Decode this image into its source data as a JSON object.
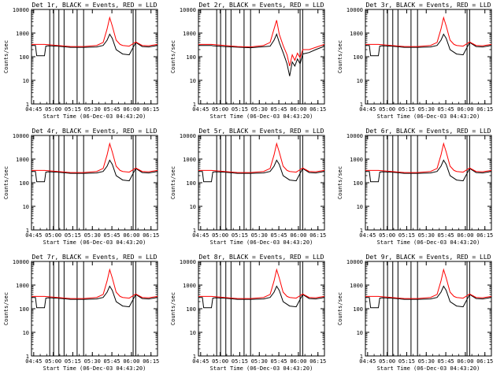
{
  "figure": {
    "panels": [
      {
        "title": "Det 1r, BLACK = Events, RED = LLD",
        "profile": "normal"
      },
      {
        "title": "Det 2r, BLACK = Events, RED = LLD",
        "profile": "det2"
      },
      {
        "title": "Det 3r, BLACK = Events, RED = LLD",
        "profile": "normal"
      },
      {
        "title": "Det 4r, BLACK = Events, RED = LLD",
        "profile": "normal"
      },
      {
        "title": "Det 5r, BLACK = Events, RED = LLD",
        "profile": "normal"
      },
      {
        "title": "Det 6r, BLACK = Events, RED = LLD",
        "profile": "normal"
      },
      {
        "title": "Det 7r, BLACK = Events, RED = LLD",
        "profile": "normal"
      },
      {
        "title": "Det 8r, BLACK = Events, RED = LLD",
        "profile": "normal"
      },
      {
        "title": "Det 9r, BLACK = Events, RED = LLD",
        "profile": "normal"
      }
    ],
    "colors": {
      "events": "#000000",
      "lld": "#ff0000",
      "axes": "#000000"
    }
  },
  "chart_data": {
    "type": "line",
    "ylabel": "Counts/sec",
    "xlabel": "Start Time (06-Dec-03 04:43:20)",
    "y_scale": "log",
    "ylim": [
      1,
      10000
    ],
    "yticks": [
      1,
      10,
      100,
      1000,
      10000
    ],
    "ytick_labels": [
      "1",
      "10",
      "100",
      "1000",
      "10000"
    ],
    "x_minutes_range": [
      0,
      96.7
    ],
    "xtick_labels": [
      "04:45",
      "05:00",
      "05:15",
      "05:30",
      "05:45",
      "06:00",
      "06:15"
    ],
    "xtick_minutes": [
      1.7,
      16.7,
      31.7,
      46.7,
      61.7,
      76.7,
      91.7
    ],
    "vertical_markers_minutes": [
      14,
      17,
      21,
      25,
      35,
      40,
      78,
      80
    ],
    "series": [
      {
        "name": "BLACK = Events",
        "profile_normal_minutes": [
          0,
          3,
          4,
          10,
          11,
          13,
          20,
          30,
          40,
          50,
          55,
          58,
          60,
          62,
          65,
          70,
          75,
          80,
          85,
          90,
          96.7
        ],
        "profile_normal_values": [
          300,
          300,
          110,
          110,
          280,
          290,
          280,
          250,
          250,
          260,
          300,
          500,
          900,
          600,
          200,
          130,
          120,
          400,
          270,
          260,
          300
        ],
        "profile_det2_minutes": [
          0,
          4,
          10,
          11,
          20,
          40,
          55,
          58,
          60,
          62,
          65,
          68,
          70,
          72,
          74,
          76,
          78,
          80,
          85,
          90,
          96.7
        ],
        "profile_det2_values": [
          300,
          300,
          300,
          290,
          270,
          240,
          280,
          500,
          900,
          400,
          150,
          50,
          15,
          60,
          40,
          80,
          50,
          130,
          150,
          200,
          280
        ]
      },
      {
        "name": "RED = LLD",
        "profile_normal_minutes": [
          0,
          10,
          20,
          30,
          40,
          50,
          55,
          58,
          60,
          62,
          65,
          68,
          70,
          75,
          80,
          85,
          90,
          96.7
        ],
        "profile_normal_values": [
          330,
          330,
          300,
          270,
          270,
          300,
          400,
          1500,
          4500,
          2000,
          500,
          330,
          300,
          280,
          420,
          300,
          290,
          330
        ],
        "profile_det2_minutes": [
          0,
          10,
          20,
          30,
          40,
          50,
          55,
          58,
          60,
          62,
          65,
          68,
          70,
          72,
          74,
          76,
          78,
          80,
          85,
          90,
          96.7
        ],
        "profile_det2_values": [
          330,
          330,
          300,
          270,
          260,
          300,
          400,
          1500,
          3500,
          900,
          300,
          120,
          40,
          120,
          70,
          140,
          90,
          200,
          200,
          250,
          330
        ]
      }
    ]
  }
}
